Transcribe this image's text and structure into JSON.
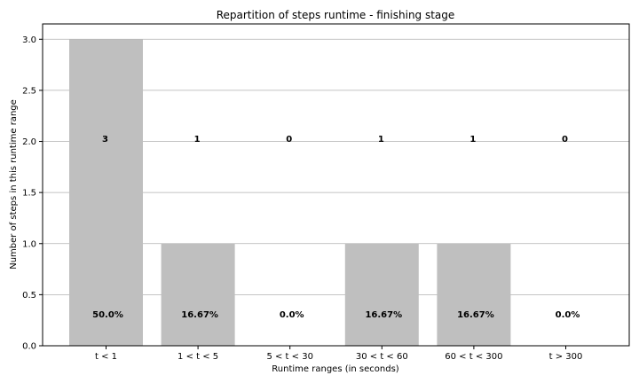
{
  "chart_data": {
    "type": "bar",
    "title": "Repartition of steps runtime - finishing stage",
    "xlabel": "Runtime ranges (in seconds)",
    "ylabel": "Number of steps in this runtime range",
    "categories": [
      "t < 1",
      "1 < t < 5",
      "5 < t < 30",
      "30 < t < 60",
      "60 < t < 300",
      "t > 300"
    ],
    "values": [
      3,
      1,
      0,
      1,
      1,
      0
    ],
    "count_labels": [
      "3",
      "1",
      "0",
      "1",
      "1",
      "0"
    ],
    "percent_labels": [
      "50.0%",
      "16.67%",
      "0.0%",
      "16.67%",
      "16.67%",
      "0.0%"
    ],
    "ylim": [
      0,
      3.15
    ],
    "yticks": [
      0.0,
      0.5,
      1.0,
      1.5,
      2.0,
      2.5,
      3.0
    ],
    "ytick_labels": [
      "0.0",
      "0.5",
      "1.0",
      "1.5",
      "2.0",
      "2.5",
      "3.0"
    ],
    "count_label_y": 2.0,
    "percent_label_y": 0.28,
    "grid": "horizontal",
    "bar_color": "#bfbfbf",
    "grid_color": "#b0b0b0"
  }
}
